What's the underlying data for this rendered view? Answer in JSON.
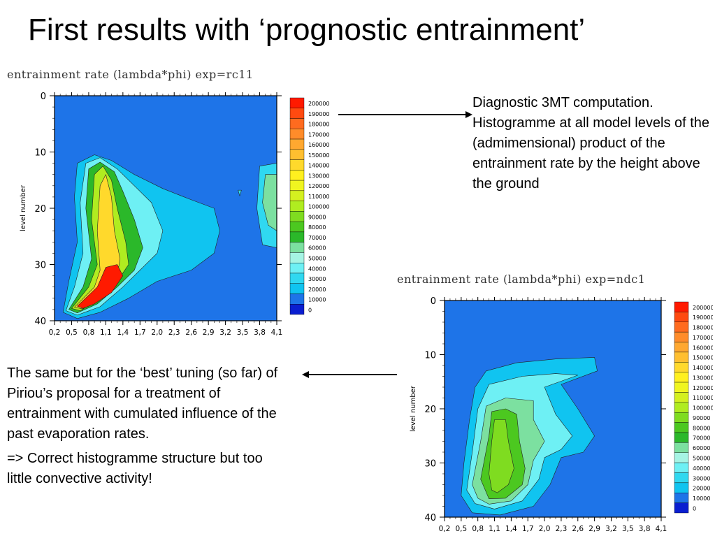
{
  "slide": {
    "title": "First results with ‘prognostic entrainment’"
  },
  "annotations": {
    "top_right_text": "Diagnostic 3MT computation. Histogramme at all model levels of the (admimensional) product of the entrainment rate by the height above the ground",
    "bottom_left_para1": "The same but for the ‘best’ tuning (so far) of Piriou’s proposal for a treatment of entrainment with cumulated influence of the past evaporation rates.",
    "bottom_left_para2": "=> Correct histogramme structure but too little convective activity!"
  },
  "chart_data": [
    {
      "type": "heatmap",
      "title": "entrainment rate (lambda*phi) exp=rc11",
      "xlabel": "",
      "ylabel": "level number",
      "x_ticks": [
        "0,2",
        "0,5",
        "0,8",
        "1,1",
        "1,4",
        "1,7",
        "2,0",
        "2,3",
        "2,6",
        "2,9",
        "3,2",
        "3,5",
        "3,8",
        "4,1"
      ],
      "y_ticks": [
        "0",
        "10",
        "20",
        "30",
        "40"
      ],
      "xlim": [
        0.2,
        4.1
      ],
      "ylim": [
        0,
        40
      ],
      "y_reversed": true,
      "background_color": "#1e74e8",
      "colorbar": {
        "levels": [
          "200000",
          "190000",
          "180000",
          "170000",
          "160000",
          "150000",
          "140000",
          "130000",
          "120000",
          "110000",
          "100000",
          "90000",
          "80000",
          "70000",
          "60000",
          "50000",
          "40000",
          "30000",
          "20000",
          "10000",
          "0"
        ],
        "colors": [
          "#ff1a00",
          "#ff4a10",
          "#ff6b1f",
          "#ff8c2a",
          "#ffa830",
          "#ffbf30",
          "#ffd92c",
          "#fff01f",
          "#f0f520",
          "#d4f020",
          "#b0ec20",
          "#7fdc20",
          "#4cc820",
          "#2bb82a",
          "#7ce0a0",
          "#a6f4e4",
          "#6ef0f4",
          "#30d8f0",
          "#10c4f0",
          "#1e74e8",
          "#0a1ed0"
        ]
      },
      "distribution": {
        "peak_x": 1.1,
        "peak_level": 35,
        "peak_value": 200000,
        "shape": "hook-shaped maximum: column from level ~11 to ~39 near x 0.8–1.4, strongest near level 33–38, cyan plateau extending to x ~3.0 between levels 15–30, isolated lobe at x ~4.0 levels 12–27"
      }
    },
    {
      "type": "heatmap",
      "title": "entrainment rate (lambda*phi) exp=ndc1",
      "xlabel": "",
      "ylabel": "level number",
      "x_ticks": [
        "0,2",
        "0,5",
        "0,8",
        "1,1",
        "1,4",
        "1,7",
        "2,0",
        "2,3",
        "2,6",
        "2,9",
        "3,2",
        "3,5",
        "3,8",
        "4,1"
      ],
      "y_ticks": [
        "0",
        "10",
        "20",
        "30",
        "40"
      ],
      "xlim": [
        0.2,
        4.1
      ],
      "ylim": [
        0,
        40
      ],
      "y_reversed": true,
      "background_color": "#1e74e8",
      "colorbar": {
        "levels": [
          "200000",
          "190000",
          "180000",
          "170000",
          "160000",
          "150000",
          "140000",
          "130000",
          "120000",
          "110000",
          "100000",
          "90000",
          "80000",
          "70000",
          "60000",
          "50000",
          "40000",
          "30000",
          "20000",
          "10000",
          "0"
        ],
        "colors": [
          "#ff1a00",
          "#ff4a10",
          "#ff6b1f",
          "#ff8c2a",
          "#ffa830",
          "#ffbf30",
          "#ffd92c",
          "#fff01f",
          "#f0f520",
          "#d4f020",
          "#b0ec20",
          "#7fdc20",
          "#4cc820",
          "#2bb82a",
          "#7ce0a0",
          "#a6f4e4",
          "#6ef0f4",
          "#30d8f0",
          "#10c4f0",
          "#1e74e8",
          "#0a1ed0"
        ]
      },
      "distribution": {
        "peak_x": 1.1,
        "peak_level": 35,
        "peak_value": 110000,
        "shape": "broad plume from level ~11 to ~40 between x 0.5–2.9, green maximum column near x 1.1–1.7, tongue extending to x ~2.9 near level 25"
      }
    }
  ]
}
